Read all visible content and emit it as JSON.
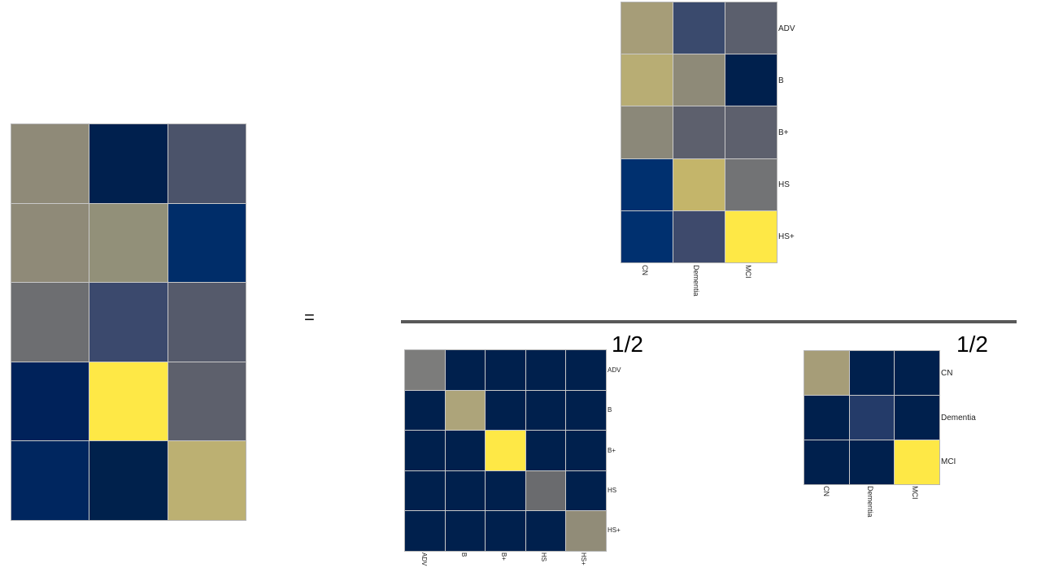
{
  "equation": {
    "equals": "=",
    "half_left": "1/2",
    "half_right": "1/2"
  },
  "colors": {
    "navy": "#00204d",
    "deep_navy": "#001a47",
    "blue": "#00306f",
    "slate_blue": "#3a4a6d",
    "slate": "#4d566b",
    "gray_blue": "#5c6070",
    "gray": "#6e6e70",
    "warm_gray": "#8e8a78",
    "khaki": "#a69d78",
    "olive_tan": "#bcb072",
    "tan": "#c4b56a",
    "yellow": "#fee846"
  },
  "result_matrix": {
    "rows": 5,
    "cols": 3,
    "cells": [
      [
        "#8f8a78",
        "#00204e",
        "#4b536a"
      ],
      [
        "#8f8a78",
        "#929079",
        "#002d69"
      ],
      [
        "#6d6e71",
        "#3b496d",
        "#555a6b"
      ],
      [
        "#00225a",
        "#fee846",
        "#5d606c"
      ],
      [
        "#00265f",
        "#00214c",
        "#bcb072"
      ]
    ]
  },
  "top_matrix": {
    "rows": 5,
    "cols": 3,
    "row_labels": [
      "ADV",
      "B",
      "B+",
      "HS",
      "HS+"
    ],
    "col_labels": [
      "CN",
      "Dementia",
      "MCI"
    ],
    "cells": [
      [
        "#a69d78",
        "#3a4a6d",
        "#5b5f6d"
      ],
      [
        "#b8ad74",
        "#8e8a78",
        "#00204d"
      ],
      [
        "#8b8879",
        "#5d606d",
        "#5d606d"
      ],
      [
        "#00306f",
        "#c4b56a",
        "#727375"
      ],
      [
        "#00306f",
        "#3e4a6c",
        "#fee846"
      ]
    ]
  },
  "left_bottom_matrix": {
    "rows": 5,
    "cols": 5,
    "row_labels": [
      "ADV",
      "B",
      "B+",
      "HS",
      "HS+"
    ],
    "col_labels": [
      "ADV",
      "B",
      "B+",
      "HS",
      "HS+"
    ],
    "cells": [
      [
        "#7c7c7b",
        "#00204d",
        "#00204d",
        "#00204d",
        "#00204d"
      ],
      [
        "#00204d",
        "#ada47a",
        "#00204d",
        "#00204d",
        "#00204d"
      ],
      [
        "#00204d",
        "#00204d",
        "#fee846",
        "#00204d",
        "#00204d"
      ],
      [
        "#00204d",
        "#00204d",
        "#00204d",
        "#6a6b6e",
        "#00204d"
      ],
      [
        "#00204d",
        "#00204d",
        "#00204d",
        "#00204d",
        "#918c78"
      ]
    ]
  },
  "right_bottom_matrix": {
    "rows": 3,
    "cols": 3,
    "row_labels": [
      "CN",
      "Dementia",
      "MCI"
    ],
    "col_labels": [
      "CN",
      "Dementia",
      "MCI"
    ],
    "cells": [
      [
        "#a69d78",
        "#00204d",
        "#00204d"
      ],
      [
        "#00204d",
        "#243b69",
        "#00204d"
      ],
      [
        "#00204d",
        "#00204d",
        "#fee846"
      ]
    ]
  }
}
